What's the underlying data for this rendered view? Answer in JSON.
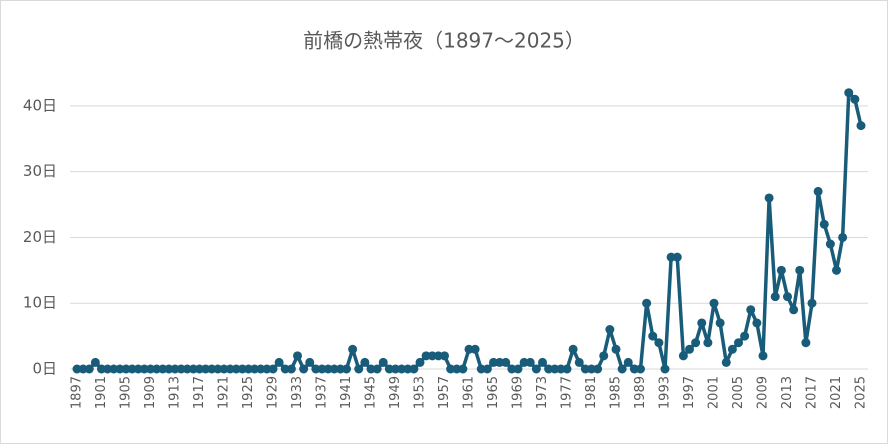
{
  "chart_data": {
    "type": "line",
    "title": "前橋の熱帯夜（1897～2025）",
    "categories": [
      "1897",
      null,
      null,
      null,
      "1901",
      null,
      null,
      null,
      "1905",
      null,
      null,
      null,
      "1909",
      null,
      null,
      null,
      "1913",
      null,
      null,
      null,
      "1917",
      null,
      null,
      null,
      "1921",
      null,
      null,
      null,
      "1925",
      null,
      null,
      null,
      "1929",
      null,
      null,
      null,
      "1933",
      null,
      null,
      null,
      "1937",
      null,
      null,
      null,
      "1941",
      null,
      null,
      null,
      "1945",
      null,
      null,
      null,
      "1949",
      null,
      null,
      null,
      "1953",
      null,
      null,
      null,
      "1957",
      null,
      null,
      null,
      "1961",
      null,
      null,
      null,
      "1965",
      null,
      null,
      null,
      "1969",
      null,
      null,
      null,
      "1973",
      null,
      null,
      null,
      "1977",
      null,
      null,
      null,
      "1981",
      null,
      null,
      null,
      "1985",
      null,
      null,
      null,
      "1989",
      null,
      null,
      null,
      "1993",
      null,
      null,
      null,
      "1997",
      null,
      null,
      null,
      "2001",
      null,
      null,
      null,
      "2005",
      null,
      null,
      null,
      "2009",
      null,
      null,
      null,
      "2013",
      null,
      null,
      null,
      "2017",
      null,
      null,
      null,
      "2021",
      null,
      null,
      null,
      "2025"
    ],
    "values": [
      0,
      0,
      0,
      1,
      0,
      0,
      0,
      0,
      0,
      0,
      0,
      0,
      0,
      0,
      0,
      0,
      0,
      0,
      0,
      0,
      0,
      0,
      0,
      0,
      0,
      0,
      0,
      0,
      0,
      0,
      0,
      0,
      0,
      1,
      0,
      0,
      2,
      0,
      1,
      0,
      0,
      0,
      0,
      0,
      0,
      3,
      0,
      1,
      0,
      0,
      1,
      0,
      0,
      0,
      0,
      0,
      1,
      2,
      2,
      2,
      2,
      0,
      0,
      0,
      3,
      3,
      0,
      0,
      1,
      1,
      1,
      0,
      0,
      1,
      1,
      0,
      1,
      0,
      0,
      0,
      0,
      3,
      1,
      0,
      0,
      0,
      2,
      6,
      3,
      0,
      1,
      0,
      0,
      10,
      5,
      4,
      0,
      17,
      17,
      2,
      3,
      4,
      7,
      4,
      10,
      7,
      1,
      3,
      4,
      5,
      9,
      7,
      2,
      26,
      11,
      15,
      11,
      9,
      15,
      4,
      10,
      27,
      22,
      19,
      15,
      20,
      42,
      41,
      37
    ],
    "color": "#185c7a",
    "ylim": [
      0,
      45
    ],
    "yticks": [
      {
        "value": 0,
        "label": "0日"
      },
      {
        "value": 10,
        "label": "10日"
      },
      {
        "value": 20,
        "label": "20日"
      },
      {
        "value": 30,
        "label": "30日"
      },
      {
        "value": 40,
        "label": "40日"
      }
    ],
    "grid": true
  }
}
